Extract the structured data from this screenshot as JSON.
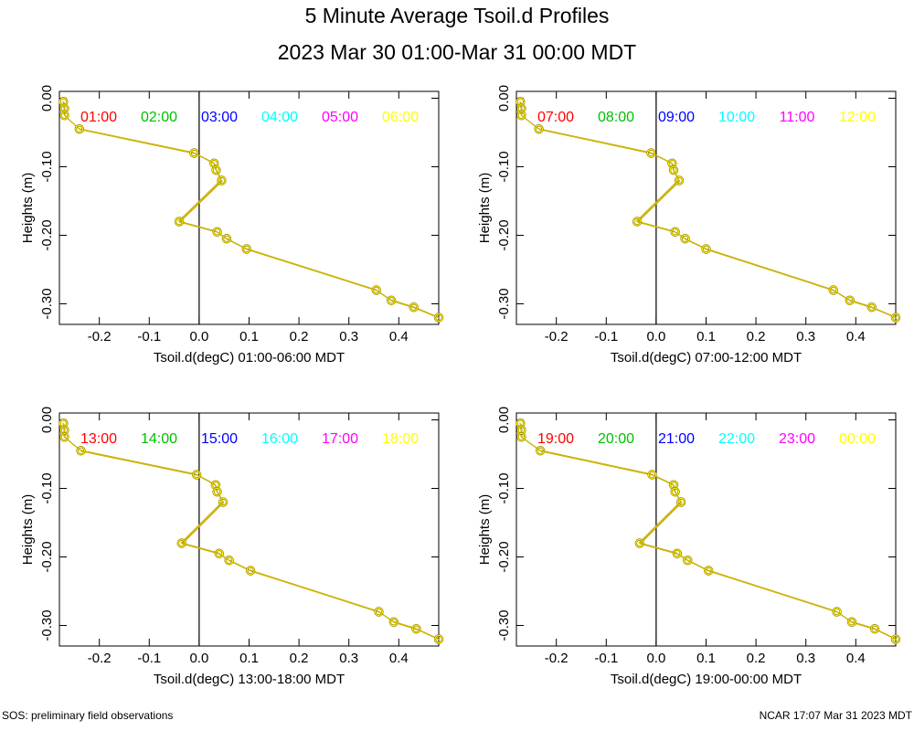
{
  "title": "5 Minute Average Tsoil.d Profiles",
  "subtitle": "2023 Mar 30 01:00-Mar 31 00:00 MDT",
  "footer_left": "SOS: preliminary field observations",
  "footer_right": "NCAR 17:07 Mar 31 2023 MDT",
  "chart_data": [
    {
      "type": "line",
      "xlabel": "Tsoil.d(degC) 01:00-06:00 MDT",
      "ylabel": "Heights (m)",
      "xlim": [
        -0.28,
        0.48
      ],
      "ylim": [
        -0.33,
        0.01
      ],
      "xticks": [
        "-0.2",
        "-0.1",
        "0.0",
        "0.1",
        "0.2",
        "0.3",
        "0.4"
      ],
      "yticks": [
        "0.00",
        "-0.10",
        "-0.20",
        "-0.30"
      ],
      "series": [
        {
          "name": "01:00",
          "color": "#ff0000"
        },
        {
          "name": "02:00",
          "color": "#00c000"
        },
        {
          "name": "03:00",
          "color": "#0000ff"
        },
        {
          "name": "04:00",
          "color": "#00ffff"
        },
        {
          "name": "05:00",
          "color": "#ff00ff"
        },
        {
          "name": "06:00",
          "color": "#ffff00"
        }
      ],
      "points": [
        [
          -0.272,
          -0.005
        ],
        [
          -0.27,
          -0.015
        ],
        [
          -0.27,
          -0.025
        ],
        [
          -0.24,
          -0.045
        ],
        [
          -0.01,
          -0.08
        ],
        [
          0.03,
          -0.095
        ],
        [
          0.034,
          -0.105
        ],
        [
          0.045,
          -0.12
        ],
        [
          -0.04,
          -0.18
        ],
        [
          0.036,
          -0.195
        ],
        [
          0.055,
          -0.205
        ],
        [
          0.095,
          -0.22
        ],
        [
          0.355,
          -0.28
        ],
        [
          0.385,
          -0.295
        ],
        [
          0.43,
          -0.305
        ],
        [
          0.48,
          -0.32
        ]
      ]
    },
    {
      "type": "line",
      "xlabel": "Tsoil.d(degC) 07:00-12:00 MDT",
      "ylabel": "Heights (m)",
      "xlim": [
        -0.28,
        0.48
      ],
      "ylim": [
        -0.33,
        0.01
      ],
      "xticks": [
        "-0.2",
        "-0.1",
        "0.0",
        "0.1",
        "0.2",
        "0.3",
        "0.4"
      ],
      "yticks": [
        "0.00",
        "-0.10",
        "-0.20",
        "-0.30"
      ],
      "series": [
        {
          "name": "07:00",
          "color": "#ff0000"
        },
        {
          "name": "08:00",
          "color": "#00c000"
        },
        {
          "name": "09:00",
          "color": "#0000ff"
        },
        {
          "name": "10:00",
          "color": "#00ffff"
        },
        {
          "name": "11:00",
          "color": "#ff00ff"
        },
        {
          "name": "12:00",
          "color": "#ffff00"
        }
      ],
      "points": [
        [
          -0.272,
          -0.005
        ],
        [
          -0.27,
          -0.015
        ],
        [
          -0.27,
          -0.025
        ],
        [
          -0.235,
          -0.045
        ],
        [
          -0.01,
          -0.08
        ],
        [
          0.032,
          -0.095
        ],
        [
          0.035,
          -0.105
        ],
        [
          0.046,
          -0.12
        ],
        [
          -0.038,
          -0.18
        ],
        [
          0.038,
          -0.195
        ],
        [
          0.058,
          -0.205
        ],
        [
          0.1,
          -0.22
        ],
        [
          0.355,
          -0.28
        ],
        [
          0.388,
          -0.295
        ],
        [
          0.432,
          -0.305
        ],
        [
          0.48,
          -0.32
        ]
      ]
    },
    {
      "type": "line",
      "xlabel": "Tsoil.d(degC) 13:00-18:00 MDT",
      "ylabel": "Heights (m)",
      "xlim": [
        -0.28,
        0.48
      ],
      "ylim": [
        -0.33,
        0.01
      ],
      "xticks": [
        "-0.2",
        "-0.1",
        "0.0",
        "0.1",
        "0.2",
        "0.3",
        "0.4"
      ],
      "yticks": [
        "0.00",
        "-0.10",
        "-0.20",
        "-0.30"
      ],
      "series": [
        {
          "name": "13:00",
          "color": "#ff0000"
        },
        {
          "name": "14:00",
          "color": "#00c000"
        },
        {
          "name": "15:00",
          "color": "#0000ff"
        },
        {
          "name": "16:00",
          "color": "#00ffff"
        },
        {
          "name": "17:00",
          "color": "#ff00ff"
        },
        {
          "name": "18:00",
          "color": "#ffff00"
        }
      ],
      "points": [
        [
          -0.272,
          -0.005
        ],
        [
          -0.27,
          -0.015
        ],
        [
          -0.27,
          -0.025
        ],
        [
          -0.237,
          -0.045
        ],
        [
          -0.005,
          -0.08
        ],
        [
          0.033,
          -0.095
        ],
        [
          0.036,
          -0.105
        ],
        [
          0.048,
          -0.12
        ],
        [
          -0.035,
          -0.18
        ],
        [
          0.04,
          -0.195
        ],
        [
          0.06,
          -0.205
        ],
        [
          0.103,
          -0.22
        ],
        [
          0.36,
          -0.28
        ],
        [
          0.39,
          -0.295
        ],
        [
          0.435,
          -0.305
        ],
        [
          0.48,
          -0.32
        ]
      ]
    },
    {
      "type": "line",
      "xlabel": "Tsoil.d(degC) 19:00-00:00 MDT",
      "ylabel": "Heights (m)",
      "xlim": [
        -0.28,
        0.48
      ],
      "ylim": [
        -0.33,
        0.01
      ],
      "xticks": [
        "-0.2",
        "-0.1",
        "0.0",
        "0.1",
        "0.2",
        "0.3",
        "0.4"
      ],
      "yticks": [
        "0.00",
        "-0.10",
        "-0.20",
        "-0.30"
      ],
      "series": [
        {
          "name": "19:00",
          "color": "#ff0000"
        },
        {
          "name": "20:00",
          "color": "#00c000"
        },
        {
          "name": "21:00",
          "color": "#0000ff"
        },
        {
          "name": "22:00",
          "color": "#00ffff"
        },
        {
          "name": "23:00",
          "color": "#ff00ff"
        },
        {
          "name": "00:00",
          "color": "#ffff00"
        }
      ],
      "points": [
        [
          -0.272,
          -0.005
        ],
        [
          -0.27,
          -0.015
        ],
        [
          -0.27,
          -0.025
        ],
        [
          -0.232,
          -0.045
        ],
        [
          -0.008,
          -0.08
        ],
        [
          0.035,
          -0.095
        ],
        [
          0.038,
          -0.105
        ],
        [
          0.05,
          -0.12
        ],
        [
          -0.033,
          -0.18
        ],
        [
          0.042,
          -0.195
        ],
        [
          0.063,
          -0.205
        ],
        [
          0.105,
          -0.22
        ],
        [
          0.362,
          -0.28
        ],
        [
          0.392,
          -0.295
        ],
        [
          0.438,
          -0.305
        ],
        [
          0.48,
          -0.32
        ]
      ]
    }
  ]
}
